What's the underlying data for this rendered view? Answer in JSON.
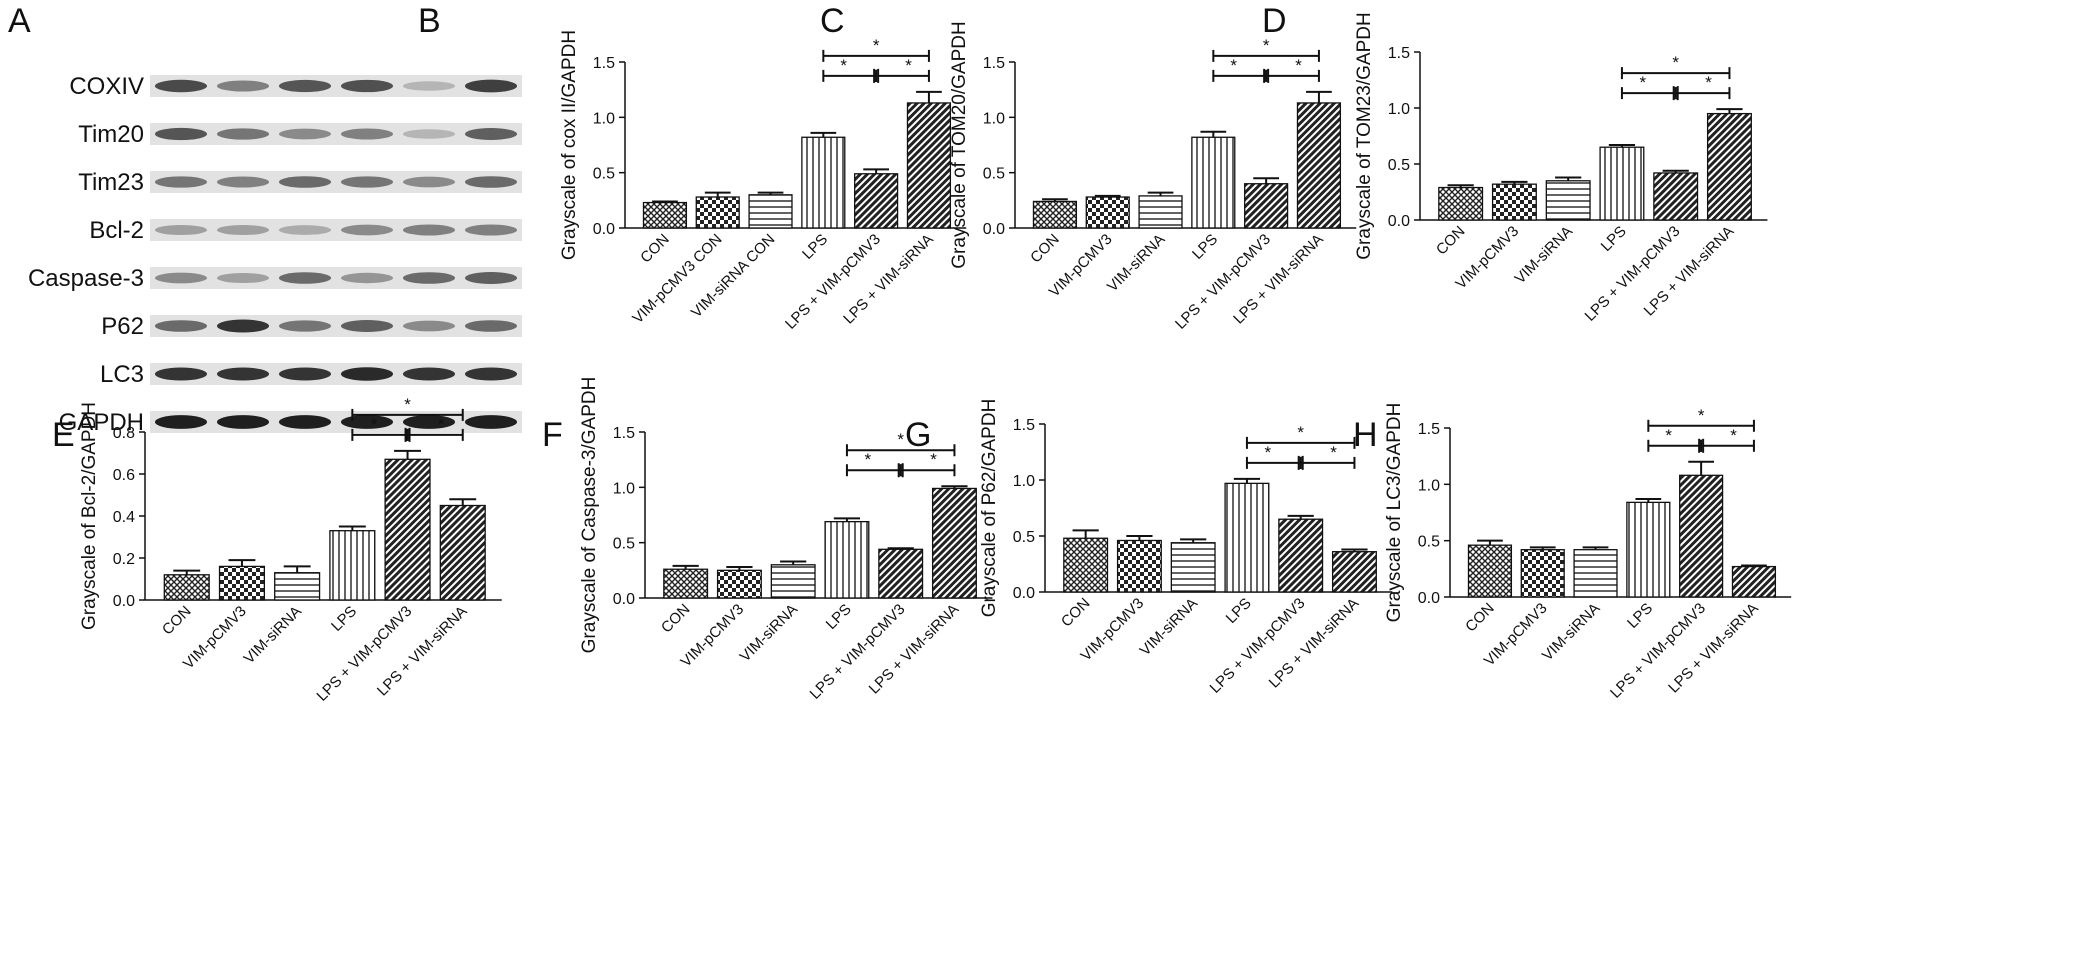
{
  "figure": {
    "panel_letters": [
      "A",
      "B",
      "C",
      "D",
      "E",
      "F",
      "G",
      "H"
    ],
    "significance_symbol": "*"
  },
  "western_blot": {
    "panel_letter": "A",
    "bands": [
      {
        "label": "COXIV",
        "intensities": [
          0.75,
          0.5,
          0.7,
          0.72,
          0.25,
          0.8
        ]
      },
      {
        "label": "Tim20",
        "intensities": [
          0.7,
          0.55,
          0.45,
          0.5,
          0.25,
          0.65
        ]
      },
      {
        "label": "Tim23",
        "intensities": [
          0.55,
          0.5,
          0.6,
          0.55,
          0.45,
          0.6
        ]
      },
      {
        "label": "Bcl-2",
        "intensities": [
          0.35,
          0.35,
          0.3,
          0.45,
          0.5,
          0.5
        ]
      },
      {
        "label": "Caspase-3",
        "intensities": [
          0.45,
          0.35,
          0.6,
          0.4,
          0.6,
          0.65
        ]
      },
      {
        "label": "P62",
        "intensities": [
          0.6,
          0.85,
          0.55,
          0.65,
          0.45,
          0.6
        ]
      },
      {
        "label": "LC3",
        "intensities": [
          0.85,
          0.85,
          0.85,
          0.9,
          0.85,
          0.85
        ]
      },
      {
        "label": "GAPDH",
        "intensities": [
          0.95,
          0.95,
          0.95,
          0.95,
          0.95,
          0.95
        ]
      }
    ]
  },
  "chart_data": [
    {
      "panel": "B",
      "type": "bar",
      "ylabel": "Grayscale of cox II/GAPDH",
      "categories": [
        "CON",
        "VIM-pCMV3 CON",
        "VIM-siRNA CON",
        "LPS",
        "LPS + VIM-pCMV3",
        "LPS + VIM-siRNA"
      ],
      "values": [
        0.23,
        0.28,
        0.3,
        0.82,
        0.49,
        1.13
      ],
      "errors": [
        0.01,
        0.04,
        0.02,
        0.04,
        0.04,
        0.1
      ],
      "ylim": [
        0,
        1.5
      ],
      "yticks": [
        "0.0",
        "0.5",
        "1.0",
        "1.5"
      ],
      "patterns": [
        "crosshatch",
        "check",
        "horizontal",
        "vertical",
        "diagonal",
        "diagonal"
      ],
      "significance": {
        "pairs": [
          [
            3,
            4
          ],
          [
            4,
            5
          ],
          [
            3,
            5
          ]
        ],
        "labels": [
          "*",
          "*",
          "*"
        ]
      }
    },
    {
      "panel": "C",
      "type": "bar",
      "ylabel": "Grayscale of TOM20/GAPDH",
      "categories": [
        "CON",
        "VIM-pCMV3",
        "VIM-siRNA",
        "LPS",
        "LPS + VIM-pCMV3",
        "LPS + VIM-siRNA"
      ],
      "values": [
        0.24,
        0.28,
        0.29,
        0.82,
        0.4,
        1.13
      ],
      "errors": [
        0.02,
        0.01,
        0.03,
        0.05,
        0.05,
        0.1
      ],
      "ylim": [
        0,
        1.5
      ],
      "yticks": [
        "0.0",
        "0.5",
        "1.0",
        "1.5"
      ],
      "patterns": [
        "crosshatch",
        "check",
        "horizontal",
        "vertical",
        "diagonal",
        "diagonal"
      ],
      "significance": {
        "pairs": [
          [
            3,
            4
          ],
          [
            4,
            5
          ],
          [
            3,
            5
          ]
        ],
        "labels": [
          "*",
          "*",
          "*"
        ]
      }
    },
    {
      "panel": "D",
      "type": "bar",
      "ylabel": "Grayscale of TOM23/GAPDH",
      "categories": [
        "CON",
        "VIM-pCMV3",
        "VIM-siRNA",
        "LPS",
        "LPS + VIM-pCMV3",
        "LPS + VIM-siRNA"
      ],
      "values": [
        0.29,
        0.32,
        0.35,
        0.65,
        0.42,
        0.95
      ],
      "errors": [
        0.02,
        0.02,
        0.03,
        0.02,
        0.02,
        0.04
      ],
      "ylim": [
        0,
        1.5
      ],
      "yticks": [
        "0.0",
        "0.5",
        "1.0",
        "1.5"
      ],
      "patterns": [
        "crosshatch",
        "check",
        "horizontal",
        "vertical",
        "diagonal",
        "diagonal"
      ],
      "significance": {
        "pairs": [
          [
            3,
            4
          ],
          [
            4,
            5
          ],
          [
            3,
            5
          ]
        ],
        "labels": [
          "*",
          "*",
          "*"
        ]
      }
    },
    {
      "panel": "E",
      "type": "bar",
      "ylabel": "Grayscale of Bcl-2/GAPDH",
      "categories": [
        "CON",
        "VIM-pCMV3",
        "VIM-siRNA",
        "LPS",
        "LPS + VIM-pCMV3",
        "LPS + VIM-siRNA"
      ],
      "values": [
        0.12,
        0.16,
        0.13,
        0.33,
        0.67,
        0.45
      ],
      "errors": [
        0.02,
        0.03,
        0.03,
        0.02,
        0.04,
        0.03
      ],
      "ylim": [
        0,
        0.8
      ],
      "yticks": [
        "0.0",
        "0.2",
        "0.4",
        "0.6",
        "0.8"
      ],
      "patterns": [
        "crosshatch",
        "check",
        "horizontal",
        "vertical",
        "diagonal",
        "diagonal"
      ],
      "significance": {
        "pairs": [
          [
            3,
            4
          ],
          [
            4,
            5
          ],
          [
            3,
            5
          ]
        ],
        "labels": [
          "*",
          "*",
          "*"
        ]
      }
    },
    {
      "panel": "F",
      "type": "bar",
      "ylabel": "Grayscale of Caspase-3/GAPDH",
      "categories": [
        "CON",
        "VIM-pCMV3",
        "VIM-siRNA",
        "LPS",
        "LPS + VIM-pCMV3",
        "LPS + VIM-siRNA"
      ],
      "values": [
        0.26,
        0.25,
        0.3,
        0.69,
        0.44,
        0.99
      ],
      "errors": [
        0.03,
        0.03,
        0.03,
        0.03,
        0.01,
        0.02
      ],
      "ylim": [
        0,
        1.5
      ],
      "yticks": [
        "0.0",
        "0.5",
        "1.0",
        "1.5"
      ],
      "patterns": [
        "crosshatch",
        "check",
        "horizontal",
        "vertical",
        "diagonal",
        "diagonal"
      ],
      "significance": {
        "pairs": [
          [
            3,
            4
          ],
          [
            4,
            5
          ],
          [
            3,
            5
          ]
        ],
        "labels": [
          "*",
          "*",
          "*"
        ]
      }
    },
    {
      "panel": "G",
      "type": "bar",
      "ylabel": "Grayscale of P62/GAPDH",
      "categories": [
        "CON",
        "VIM-pCMV3",
        "VIM-siRNA",
        "LPS",
        "LPS + VIM-pCMV3",
        "LPS + VIM-siRNA"
      ],
      "values": [
        0.48,
        0.46,
        0.44,
        0.97,
        0.65,
        0.36
      ],
      "errors": [
        0.07,
        0.04,
        0.03,
        0.04,
        0.03,
        0.02
      ],
      "ylim": [
        0,
        1.5
      ],
      "yticks": [
        "0.0",
        "0.5",
        "1.0",
        "1.5"
      ],
      "patterns": [
        "crosshatch",
        "check",
        "horizontal",
        "vertical",
        "diagonal",
        "diagonal"
      ],
      "significance": {
        "pairs": [
          [
            3,
            4
          ],
          [
            4,
            5
          ],
          [
            3,
            5
          ]
        ],
        "labels": [
          "*",
          "*",
          "*"
        ]
      }
    },
    {
      "panel": "H",
      "type": "bar",
      "ylabel": "Grayscale of LC3/GAPDH",
      "categories": [
        "CON",
        "VIM-pCMV3",
        "VIM-siRNA",
        "LPS",
        "LPS + VIM-pCMV3",
        "LPS + VIM-siRNA"
      ],
      "values": [
        0.46,
        0.42,
        0.42,
        0.84,
        1.08,
        0.27
      ],
      "errors": [
        0.04,
        0.02,
        0.02,
        0.03,
        0.12,
        0.01
      ],
      "ylim": [
        0,
        1.5
      ],
      "yticks": [
        "0.0",
        "0.5",
        "1.0",
        "1.5"
      ],
      "patterns": [
        "crosshatch",
        "check",
        "horizontal",
        "vertical",
        "diagonal",
        "diagonal"
      ],
      "significance": {
        "pairs": [
          [
            3,
            4
          ],
          [
            4,
            5
          ],
          [
            3,
            5
          ]
        ],
        "labels": [
          "*",
          "*",
          "*"
        ]
      }
    }
  ]
}
